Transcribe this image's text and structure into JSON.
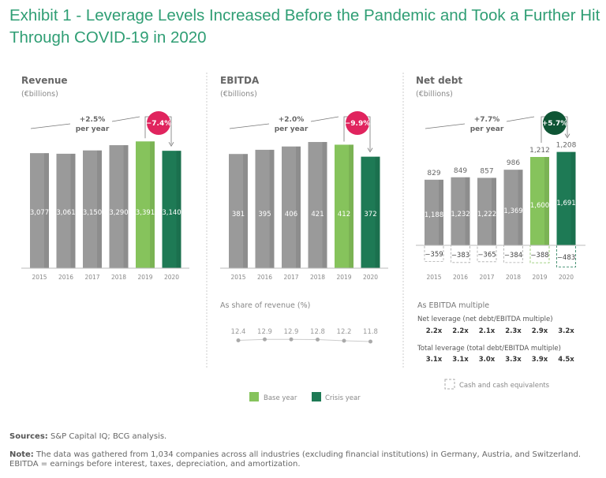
{
  "title": "Exhibit 1 - Leverage Levels Increased Before the Pandemic and Took a Further Hit Through COVID-19 in 2020",
  "colors": {
    "gray": "#9a9a9a",
    "base": "#86c35c",
    "crisis": "#1e7a55",
    "red": "#e0245e",
    "darkgreen": "#0f5535",
    "title": "#2f9e74"
  },
  "chart_data": [
    {
      "type": "bar",
      "title": "Revenue",
      "unit": "(€billions)",
      "categories": [
        "2015",
        "2016",
        "2017",
        "2018",
        "2019",
        "2020"
      ],
      "values": [
        3077,
        3061,
        3150,
        3290,
        3391,
        3140
      ],
      "labels": [
        "3,077",
        "3,061",
        "3,150",
        "3,290",
        "3,391",
        "3,140"
      ],
      "cagr": "+2.5%",
      "cagr_sub": "per year",
      "change": "−7.4%"
    },
    {
      "type": "bar",
      "title": "EBITDA",
      "unit": "(€billions)",
      "categories": [
        "2015",
        "2016",
        "2017",
        "2018",
        "2019",
        "2020"
      ],
      "values": [
        381,
        395,
        406,
        421,
        412,
        372
      ],
      "labels": [
        "381",
        "395",
        "406",
        "421",
        "412",
        "372"
      ],
      "cagr": "+2.0%",
      "cagr_sub": "per year",
      "change": "−9.9%",
      "share": {
        "label": "As share of revenue (%)",
        "values": [
          12.4,
          12.9,
          12.9,
          12.8,
          12.2,
          11.8
        ],
        "labels": [
          "12.4",
          "12.9",
          "12.9",
          "12.8",
          "12.2",
          "11.8"
        ]
      }
    },
    {
      "type": "bar",
      "title": "Net debt",
      "unit": "(€billions)",
      "categories": [
        "2015",
        "2016",
        "2017",
        "2018",
        "2019",
        "2020"
      ],
      "total_debt": [
        1188,
        1232,
        1222,
        1369,
        1600,
        1691
      ],
      "total_labels": [
        "1,188",
        "1,232",
        "1,222",
        "1,369",
        "1,600",
        "1,691"
      ],
      "cash": [
        -359,
        -383,
        -365,
        -384,
        -388,
        -483
      ],
      "cash_labels": [
        "−359",
        "−383",
        "−365",
        "−384",
        "−388",
        "−483"
      ],
      "net_debt": [
        829,
        849,
        857,
        986,
        1212,
        1208
      ],
      "net_labels": [
        "829",
        "849",
        "857",
        "986",
        "1,212",
        "1,208"
      ],
      "cagr": "+7.7%",
      "cagr_sub": "per year",
      "change": "+5.7%",
      "multiples": {
        "label": "As EBITDA multiple",
        "net_label": "Net leverage (net debt/EBITDA multiple)",
        "net": [
          "2.2x",
          "2.2x",
          "2.1x",
          "2.3x",
          "2.9x",
          "3.2x"
        ],
        "total_label": "Total leverage (total debt/EBITDA multiple)",
        "total": [
          "3.1x",
          "3.1x",
          "3.0x",
          "3.3x",
          "3.9x",
          "4.5x"
        ]
      },
      "cash_legend": "Cash and cash equivalents"
    }
  ],
  "legend": {
    "base": "Base year",
    "crisis": "Crisis year"
  },
  "sources": {
    "label": "Sources:",
    "text": " S&P Capital IQ; BCG analysis."
  },
  "note": {
    "label": "Note:",
    "text": " The data was gathered from 1,034 companies across all industries (excluding financial institutions) in Germany, Austria, and Switzerland. EBITDA = earnings before interest, taxes, depreciation, and amortization."
  }
}
